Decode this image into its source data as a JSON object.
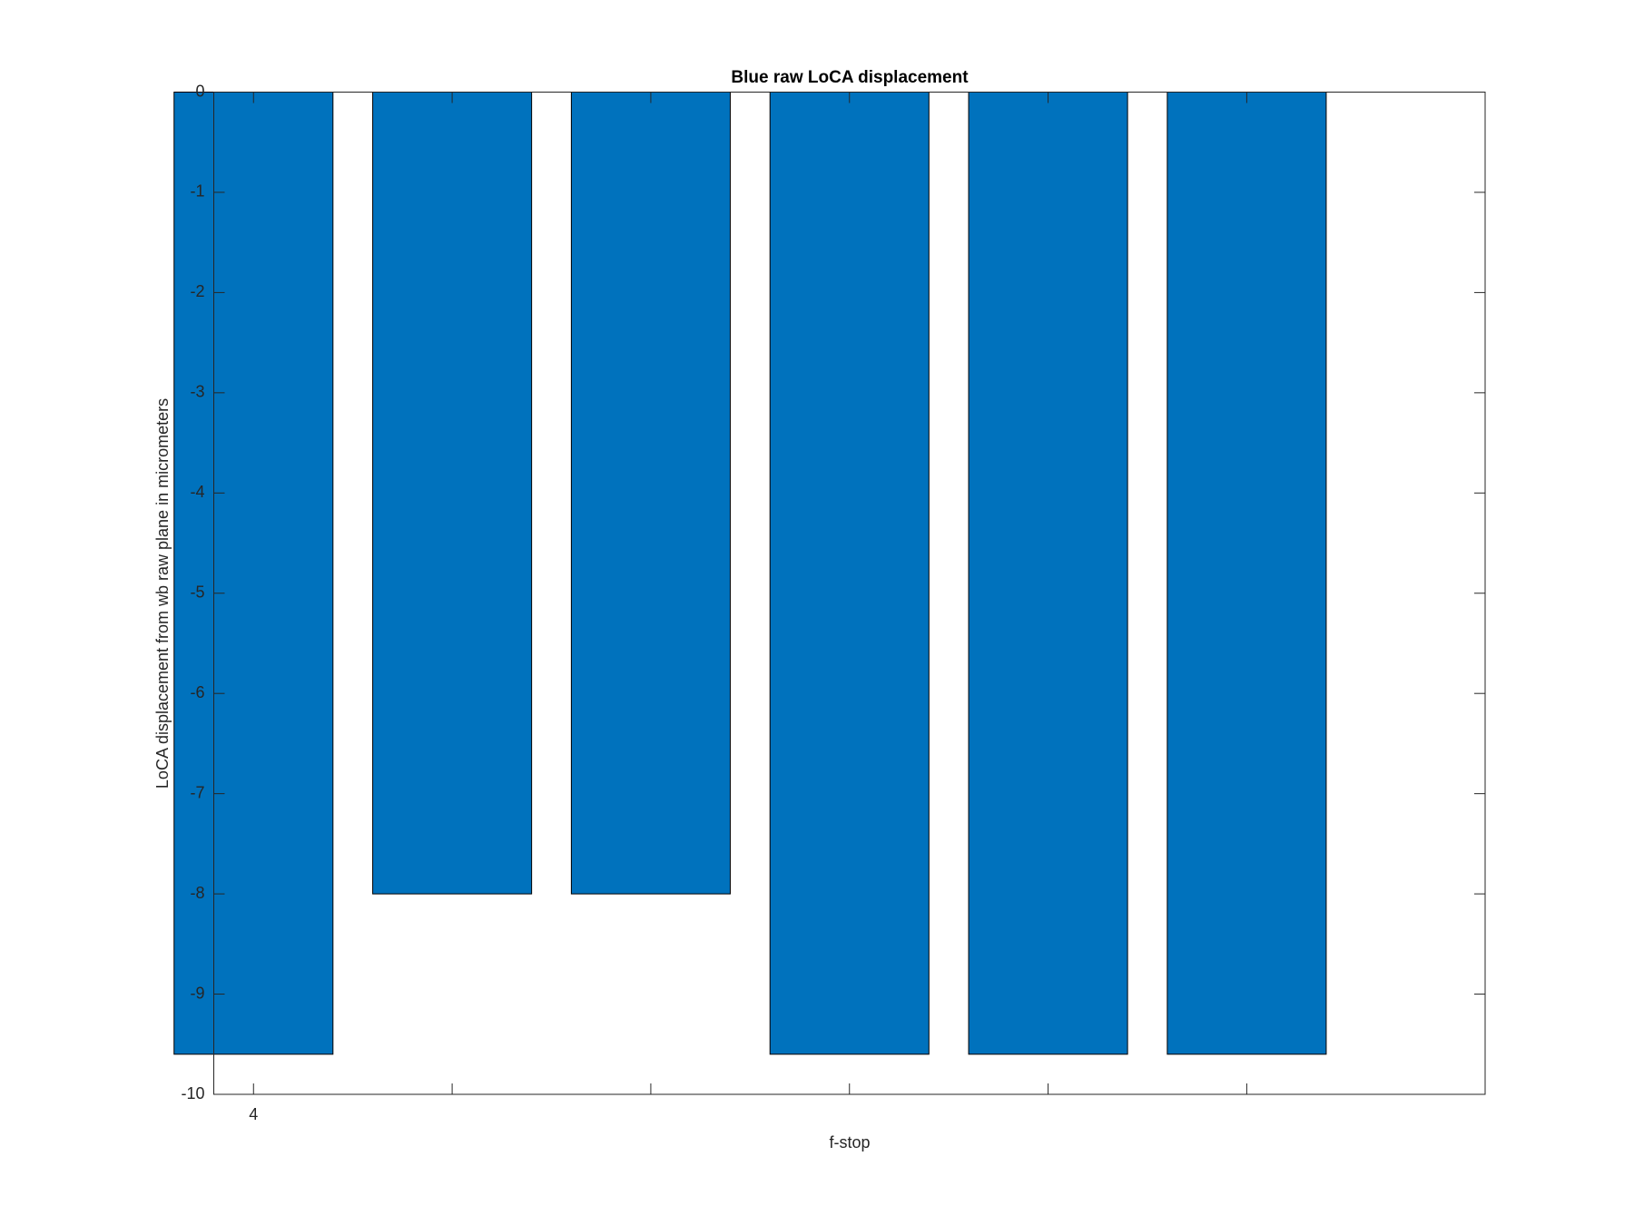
{
  "chart_data": {
    "type": "bar",
    "title": "Blue raw  LoCA displacement",
    "x_label": "f-stop",
    "y_label": "LoCA displacement from wb raw plane in micrometers",
    "categories": [
      "4",
      null,
      null,
      null,
      null,
      null
    ],
    "values": [
      -9.6,
      -8,
      -8,
      -9.6,
      -9.6,
      -9.6
    ],
    "color": "#0072bd",
    "ylim": [
      -10,
      0
    ],
    "yticks": [
      -10,
      -9,
      -8,
      -7,
      -6,
      -5,
      -4,
      -3,
      -2,
      -1,
      0
    ]
  }
}
